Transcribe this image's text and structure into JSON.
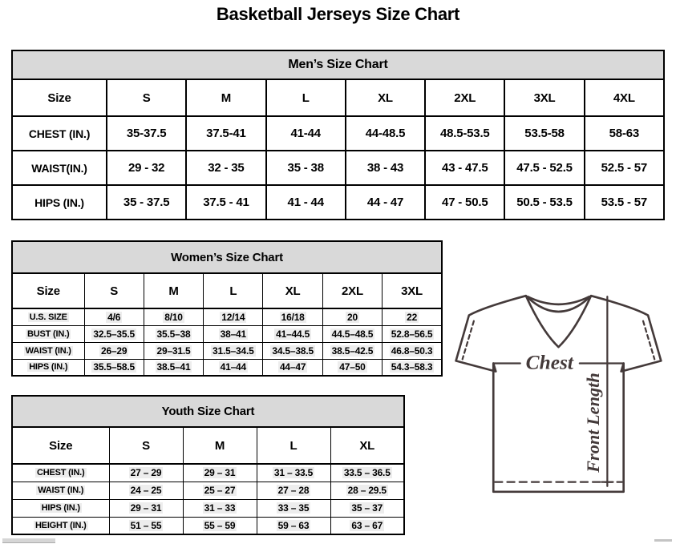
{
  "page": {
    "title": "Basketball Jerseys Size Chart"
  },
  "tables": {
    "men": {
      "title": "Men’s Size Chart",
      "columns": [
        "Size",
        "S",
        "M",
        "L",
        "XL",
        "2XL",
        "3XL",
        "4XL"
      ],
      "rows": [
        {
          "label": "CHEST (IN.)",
          "values": [
            "35-37.5",
            "37.5-41",
            "41-44",
            "44-48.5",
            "48.5-53.5",
            "53.5-58",
            "58-63"
          ]
        },
        {
          "label": "WAIST(IN.)",
          "values": [
            "29 - 32",
            "32 - 35",
            "35 - 38",
            "38 - 43",
            "43 - 47.5",
            "47.5 - 52.5",
            "52.5 - 57"
          ]
        },
        {
          "label": "HIPS (IN.)",
          "values": [
            "35 - 37.5",
            "37.5 - 41",
            "41 - 44",
            "44 - 47",
            "47 - 50.5",
            "50.5 - 53.5",
            "53.5 - 57"
          ]
        }
      ]
    },
    "women": {
      "title": "Women’s Size Chart",
      "columns": [
        "Size",
        "S",
        "M",
        "L",
        "XL",
        "2XL",
        "3XL"
      ],
      "rows": [
        {
          "label": "U.S. SIZE",
          "values": [
            "4/6",
            "8/10",
            "12/14",
            "16/18",
            "20",
            "22"
          ]
        },
        {
          "label": "BUST (IN.)",
          "values": [
            "32.5–35.5",
            "35.5–38",
            "38–41",
            "41–44.5",
            "44.5–48.5",
            "52.8–56.5"
          ]
        },
        {
          "label": "WAIST (IN.)",
          "values": [
            "26–29",
            "29–31.5",
            "31.5–34.5",
            "34.5–38.5",
            "38.5–42.5",
            "46.8–50.3"
          ]
        },
        {
          "label": "HIPS (IN.)",
          "values": [
            "35.5–58.5",
            "38.5–41",
            "41–44",
            "44–47",
            "47–50",
            "54.3–58.3"
          ]
        }
      ]
    },
    "youth": {
      "title": "Youth Size Chart",
      "columns": [
        "Size",
        "S",
        "M",
        "L",
        "XL"
      ],
      "rows": [
        {
          "label": "CHEST (IN.)",
          "values": [
            "27 – 29",
            "29 – 31",
            "31 – 33.5",
            "33.5 – 36.5"
          ]
        },
        {
          "label": "WAIST (IN.)",
          "values": [
            "24 – 25",
            "25 – 27",
            "27 – 28",
            "28 – 29.5"
          ]
        },
        {
          "label": "HIPS (IN.)",
          "values": [
            "29 – 31",
            "31 – 33",
            "33 – 35",
            "35 – 37"
          ]
        },
        {
          "label": "HEIGHT (IN.)",
          "values": [
            "51 – 55",
            "55 – 59",
            "59 – 63",
            "63 – 67"
          ]
        }
      ]
    }
  },
  "diagram": {
    "chest_label": "Chest",
    "front_length_label": "Front Length",
    "line_color": "#443a3a"
  }
}
